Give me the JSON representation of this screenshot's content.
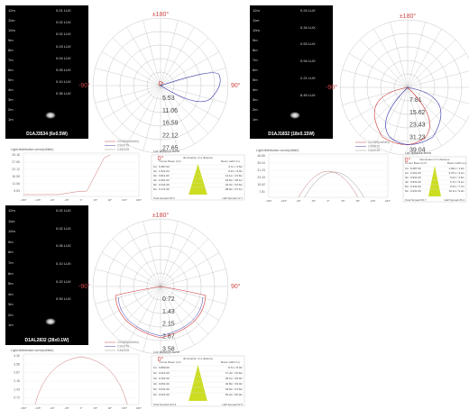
{
  "panels": [
    {
      "dark": {
        "x": 6,
        "y": 6,
        "w": 92,
        "h": 148
      },
      "heights": [
        "12m",
        "11m",
        "10m",
        "9m",
        "8m",
        "7m",
        "6m",
        "5m",
        "4m",
        "3m",
        "2m",
        "1m"
      ],
      "lux": [
        "0.01 LUX",
        "0.02 LUX",
        "0.02 LUX",
        "0.03 LUX",
        "0.04 LUX",
        "0.05 LUX",
        "0.10 LUX",
        "0.36 LUX"
      ],
      "model": "D1AJ3534   (6x0.5W)",
      "polar": {
        "cx": 178,
        "cy": 95,
        "r": 75
      },
      "angles": {
        "top": "±180°",
        "left": "-90°",
        "right": "90°",
        "bottom": "0°"
      },
      "rings": [
        "5.53",
        "11.06",
        "16.59",
        "22.12",
        "27.65"
      ],
      "legend": [
        "C0/180(cd/klm)",
        "C90/270",
        "C45/225"
      ],
      "curve_title": "Light distribution curve(cd/klm)",
      "cone_title": "Lux distance curve",
      "y_ticks": [
        "33.18",
        "27.65",
        "22.12",
        "16.59",
        "11.06",
        "5.53"
      ],
      "x_ticks": [
        "-180°",
        "-135°",
        "-90°",
        "-45°",
        "0°",
        "45°",
        "90°",
        "135°",
        "180°"
      ],
      "table_head": [
        "Illumination of a distance",
        "Center Beam (LX)",
        "Beam width (m)"
      ],
      "table": [
        [
          "1m",
          "6.387.03",
          "4.7m / 4.5m"
        ],
        [
          "2m",
          "1.522.04",
          "9.2m / 9.0m"
        ],
        [
          "3m",
          "0.811.00",
          "14.1m / 13.6m"
        ],
        [
          "4m",
          "0.401.02",
          "18.6m / 18.1m"
        ],
        [
          "5m",
          "0.241.00",
          "23.3m / 22.6m"
        ],
        [
          "6m",
          "0.171.00",
          "28.0m / 27.1m"
        ]
      ],
      "table_foot": [
        "Total Spread 25.6",
        "Half Spread 12.7"
      ]
    },
    {
      "dark": {
        "x": 277,
        "y": 6,
        "w": 92,
        "h": 148
      },
      "heights": [
        "12m",
        "11m",
        "10m",
        "9m",
        "8m",
        "7m",
        "6m",
        "5m",
        "4m",
        "3m",
        "2m",
        "1m"
      ],
      "lux": [
        "0.24 LUX",
        "0.34 LUX",
        "0.53 LUX",
        "0.94 LUX",
        "2.21 LUX",
        "8.49 LUX"
      ],
      "model": "D1AJ1832   (18x0.15W)",
      "polar": {
        "cx": 452,
        "cy": 97,
        "r": 75
      },
      "angles": {
        "top": "±180°",
        "left": "-90°",
        "right": "90°",
        "bottom": "0°"
      },
      "rings": [
        "7.81",
        "15.62",
        "23.43",
        "31.23",
        "39.04"
      ],
      "legend": [
        "C0/180(cd/klm)",
        "C90/270",
        "C45/225"
      ],
      "curve_title": "Light distribution curve(cd/klm)",
      "cone_title": "Lux distance curve",
      "y_ticks": [
        "46.85",
        "39.04",
        "31.23",
        "23.43",
        "15.62",
        "7.81"
      ],
      "x_ticks": [
        "-180°",
        "-135°",
        "-90°",
        "-45°",
        "0°",
        "45°",
        "90°",
        "135°",
        "180°"
      ],
      "table_head": [
        "Illumination of a distance",
        "Center Beam (LX)",
        "Beam width (m)"
      ],
      "table": [
        [
          "1m",
          "8.487.00",
          "1.02m / 1.2m"
        ],
        [
          "2m",
          "2.221.00",
          "3.37m / 3.1m"
        ],
        [
          "3m",
          "0.941.00",
          "5.0m / 4.6m"
        ],
        [
          "4m",
          "0.531.00",
          "6.7m / 6.1m"
        ],
        [
          "5m",
          "0.341.00",
          "8.4m / 7.7m"
        ],
        [
          "6m",
          "0.241.00",
          "10.1m / 9.2m"
        ]
      ],
      "table_foot": [
        "Total Spread 50.7",
        "Half Spread 25.4"
      ]
    },
    {
      "dark": {
        "x": 6,
        "y": 228,
        "w": 92,
        "h": 155
      },
      "heights": [
        "12m",
        "11m",
        "10m",
        "9m",
        "8m",
        "7m",
        "6m",
        "5m",
        "4m",
        "3m",
        "2m",
        "1m"
      ],
      "lux": [
        "0.02 LUX",
        "0.02 LUX",
        "0.06 LUX",
        "0.10 LUX",
        "0.22 LUX",
        "0.90 LUX"
      ],
      "model": "D1AL2832   (28x0.1W)",
      "polar": {
        "cx": 178,
        "cy": 318,
        "r": 75
      },
      "angles": {
        "top": "±180°",
        "left": "-90°",
        "right": "90°",
        "bottom": "0°"
      },
      "rings": [
        "0.72",
        "1.43",
        "2.15",
        "2.87",
        "3.58"
      ],
      "legend": [
        "C0/180(cd/klm)",
        "C90/270",
        "C45/225"
      ],
      "curve_title": "Light distribution curve(cd/klm)",
      "cone_title": "Lux distance curve",
      "y_ticks": [
        "4.30",
        "3.58",
        "2.87",
        "2.15",
        "1.43",
        "0.72"
      ],
      "x_ticks": [
        "-180°",
        "-135°",
        "-90°",
        "-45°",
        "0°",
        "45°",
        "90°",
        "135°",
        "180°"
      ],
      "table_head": [
        "Illumination of a distance",
        "Center Beam (LX)",
        "Beam width (m)"
      ],
      "table": [
        [
          "1m",
          "0.899.00",
          "8.7m / 8.3m"
        ],
        [
          "2m",
          "0.221.00",
          "17.4m / 16.6m"
        ],
        [
          "3m",
          "0.101.00",
          "26.1m / 25.0m"
        ],
        [
          "4m",
          "0.061.00",
          "34.8m / 33.3m"
        ],
        [
          "5m",
          "0.041.00",
          "43.5m / 41.6m"
        ],
        [
          "6m",
          "0.021.00",
          "52.2m / 50.0m"
        ]
      ],
      "table_foot": [
        "Total Spread 124.3",
        "Half Spread 62.3"
      ]
    }
  ]
}
